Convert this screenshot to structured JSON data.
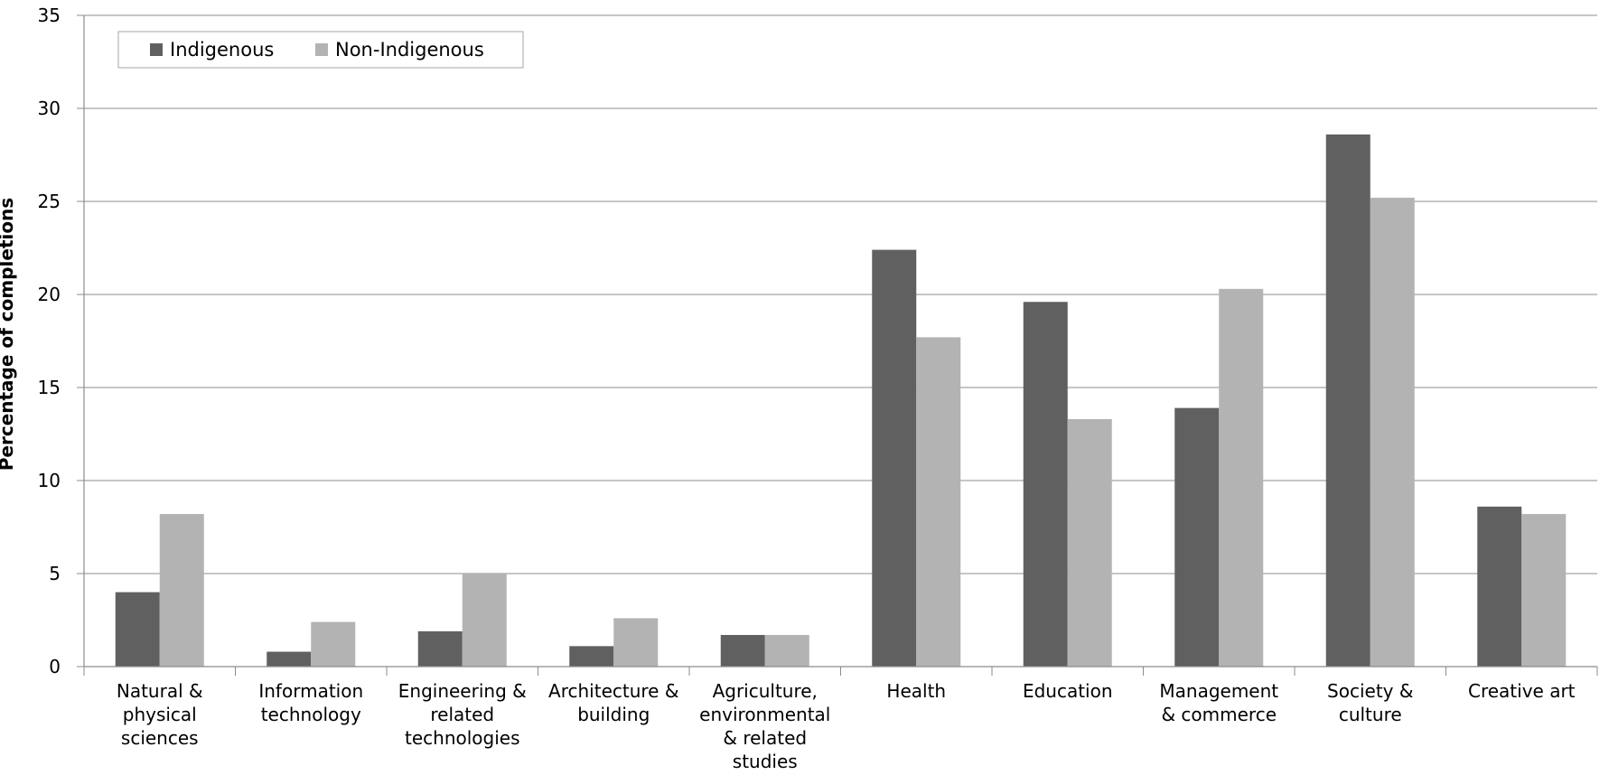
{
  "chart_data": {
    "type": "bar",
    "title": "",
    "xlabel": "",
    "ylabel": "Percentage of completions",
    "ylim": [
      0,
      35
    ],
    "yticks": [
      0,
      5,
      10,
      15,
      20,
      25,
      30,
      35
    ],
    "grid": true,
    "legend": "top-left",
    "categories": [
      "Natural & physical sciences",
      "Information technology",
      "Engineering & related technologies",
      "Architecture & building",
      "Agriculture, environmental & related studies",
      "Health",
      "Education",
      "Management & commerce",
      "Society & culture",
      "Creative art"
    ],
    "category_lines": [
      [
        "Natural &",
        "physical",
        "sciences"
      ],
      [
        "Information",
        "technology"
      ],
      [
        "Engineering &",
        "related",
        "technologies"
      ],
      [
        "Architecture &",
        "building"
      ],
      [
        "Agriculture,",
        "environmental",
        "& related",
        "studies"
      ],
      [
        "Health"
      ],
      [
        "Education"
      ],
      [
        "Management",
        "& commerce"
      ],
      [
        "Society &",
        "culture"
      ],
      [
        "Creative art"
      ]
    ],
    "series": [
      {
        "name": "Indigenous",
        "color": "#606060",
        "values": [
          4.0,
          0.8,
          1.9,
          1.1,
          1.7,
          22.4,
          19.6,
          13.9,
          28.6,
          8.6
        ]
      },
      {
        "name": "Non-Indigenous",
        "color": "#b3b3b3",
        "values": [
          8.2,
          2.4,
          5.0,
          2.6,
          1.7,
          17.7,
          13.3,
          20.3,
          25.2,
          8.2
        ]
      }
    ]
  }
}
